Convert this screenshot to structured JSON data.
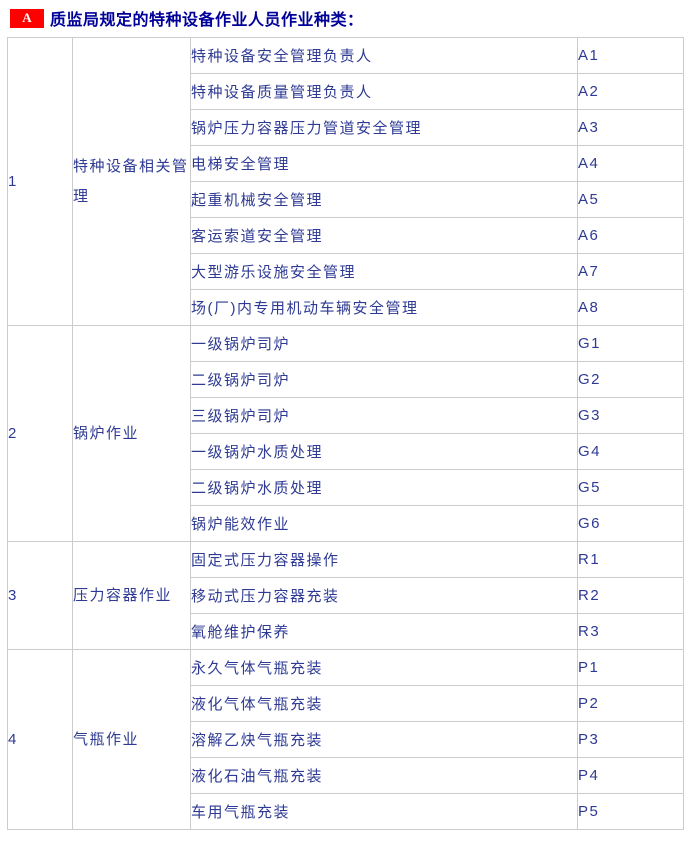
{
  "header": {
    "badge": "A",
    "title": "质监局规定的特种设备作业人员作业种类："
  },
  "colors": {
    "badge_background": "#ff0000",
    "badge_text": "#ffffff",
    "title_text": "#000099",
    "cell_text": "#2e3a93",
    "table_border": "#cccccc"
  },
  "table": {
    "sections": [
      {
        "number": "1",
        "category": "特种设备相关管理",
        "items": [
          {
            "name": "特种设备安全管理负责人",
            "code": "A1"
          },
          {
            "name": "特种设备质量管理负责人",
            "code": "A2"
          },
          {
            "name": "锅炉压力容器压力管道安全管理",
            "code": "A3"
          },
          {
            "name": "电梯安全管理",
            "code": "A4"
          },
          {
            "name": "起重机械安全管理",
            "code": "A5"
          },
          {
            "name": "客运索道安全管理",
            "code": "A6"
          },
          {
            "name": "大型游乐设施安全管理",
            "code": "A7"
          },
          {
            "name": "场(厂)内专用机动车辆安全管理",
            "code": "A8"
          }
        ]
      },
      {
        "number": "2",
        "category": "锅炉作业",
        "items": [
          {
            "name": "一级锅炉司炉",
            "code": "G1"
          },
          {
            "name": "二级锅炉司炉",
            "code": "G2"
          },
          {
            "name": "三级锅炉司炉",
            "code": "G3"
          },
          {
            "name": "一级锅炉水质处理",
            "code": "G4"
          },
          {
            "name": "二级锅炉水质处理",
            "code": "G5"
          },
          {
            "name": "锅炉能效作业",
            "code": "G6"
          }
        ]
      },
      {
        "number": "3",
        "category": "压力容器作业",
        "items": [
          {
            "name": "固定式压力容器操作",
            "code": "R1"
          },
          {
            "name": "移动式压力容器充装",
            "code": "R2"
          },
          {
            "name": "氧舱维护保养",
            "code": "R3"
          }
        ]
      },
      {
        "number": "4",
        "category": "气瓶作业",
        "items": [
          {
            "name": "永久气体气瓶充装",
            "code": "P1"
          },
          {
            "name": "液化气体气瓶充装",
            "code": "P2"
          },
          {
            "name": "溶解乙炔气瓶充装",
            "code": "P3"
          },
          {
            "name": "液化石油气瓶充装",
            "code": "P4"
          },
          {
            "name": "车用气瓶充装",
            "code": "P5"
          }
        ]
      }
    ]
  }
}
